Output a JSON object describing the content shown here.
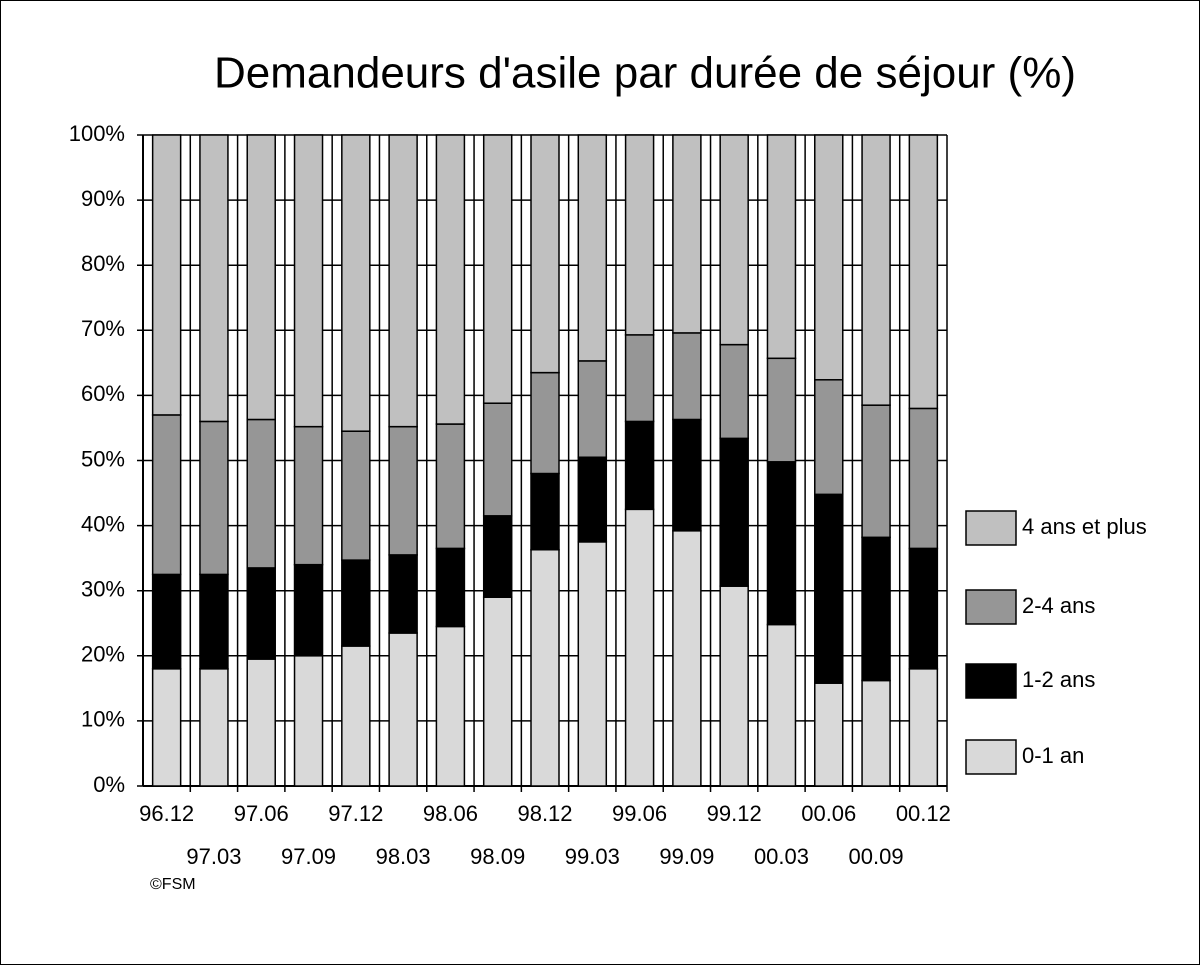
{
  "chart_data": {
    "type": "stacked_bar",
    "title": "Demandeurs d'asile par durée de séjour (%)",
    "footnote": "©FSM",
    "categories": [
      "96.12",
      "97.03",
      "97.06",
      "97.09",
      "97.12",
      "98.03",
      "98.06",
      "98.09",
      "98.12",
      "99.03",
      "99.06",
      "99.09",
      "99.12",
      "00.03",
      "00.06",
      "00.09",
      "00.12"
    ],
    "series": [
      {
        "name": "0-1 an",
        "color": "#d9d9d9",
        "values": [
          18,
          18,
          19.5,
          20,
          21.5,
          23.5,
          24.5,
          29,
          36.3,
          37.5,
          42.5,
          39.2,
          30.7,
          24.8,
          15.8,
          16.2,
          18
        ]
      },
      {
        "name": "1-2 ans",
        "color": "#000000",
        "values": [
          14.5,
          14.5,
          14,
          14,
          13.2,
          12,
          12,
          12.5,
          11.7,
          13,
          13.5,
          17.1,
          22.7,
          25,
          29,
          22,
          18.5
        ]
      },
      {
        "name": "2-4 ans",
        "color": "#969696",
        "values": [
          24.5,
          23.5,
          22.8,
          21.2,
          19.8,
          19.7,
          19.1,
          17.3,
          15.5,
          14.8,
          13.3,
          13.3,
          14.4,
          15.9,
          17.6,
          20.3,
          21.5
        ]
      },
      {
        "name": "4 ans et plus",
        "color": "#c0c0c0",
        "values": [
          43,
          44,
          43.7,
          44.8,
          45.5,
          44.8,
          44.4,
          41.2,
          36.5,
          34.7,
          30.7,
          30.4,
          32.2,
          34.3,
          37.6,
          41.5,
          42
        ]
      }
    ],
    "ylim": [
      0,
      100
    ],
    "yticks": [
      {
        "value": 0,
        "label": "0%"
      },
      {
        "value": 10,
        "label": "10%"
      },
      {
        "value": 20,
        "label": "20%"
      },
      {
        "value": 30,
        "label": "30%"
      },
      {
        "value": 40,
        "label": "40%"
      },
      {
        "value": 50,
        "label": "50%"
      },
      {
        "value": 60,
        "label": "60%"
      },
      {
        "value": 70,
        "label": "70%"
      },
      {
        "value": 80,
        "label": "80%"
      },
      {
        "value": 90,
        "label": "90%"
      },
      {
        "value": 100,
        "label": "100%"
      }
    ],
    "grid": true,
    "legend": "right"
  }
}
